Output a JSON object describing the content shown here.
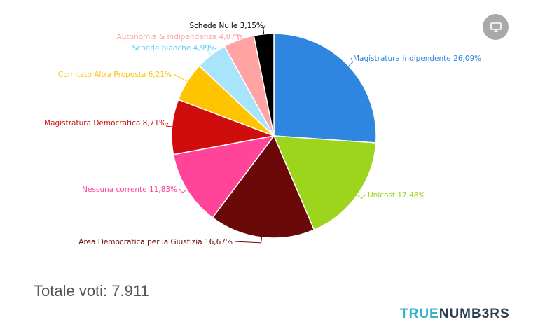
{
  "chart_data": {
    "type": "pie",
    "title": "",
    "start_angle_deg": 0,
    "direction": "clockwise",
    "slices": [
      {
        "label": "Magistratura Indipendente 26,09%",
        "value": 26.09,
        "color": "#2e86e0"
      },
      {
        "label": "Unicost 17,48%",
        "value": 17.48,
        "color": "#9dd41c"
      },
      {
        "label": "Area Democratica per la Giustizia 16,67%",
        "value": 16.67,
        "color": "#6b0808"
      },
      {
        "label": "Nessuna corrente 11,83%",
        "value": 11.83,
        "color": "#ff4499"
      },
      {
        "label": "Magistratura Democratica 8,71%",
        "value": 8.71,
        "color": "#cf0d0d"
      },
      {
        "label": "Comitato Altra Proposta 6,21%",
        "value": 6.21,
        "color": "#ffc400"
      },
      {
        "label": "Schede bianche 4,99%",
        "value": 4.99,
        "color": "#a8e4fc"
      },
      {
        "label": "Autonomia & Indipendenza 4,87%",
        "value": 4.87,
        "color": "#ffa3a3"
      },
      {
        "label": "Schede Nulle 3,15%",
        "value": 3.15,
        "color": "#000000"
      }
    ]
  },
  "summary": {
    "total_text": "Totale voti: 7.911"
  },
  "brand": {
    "part1": "TRUE",
    "part2": "NUMB3RS"
  },
  "export_icon": "monitor-icon"
}
